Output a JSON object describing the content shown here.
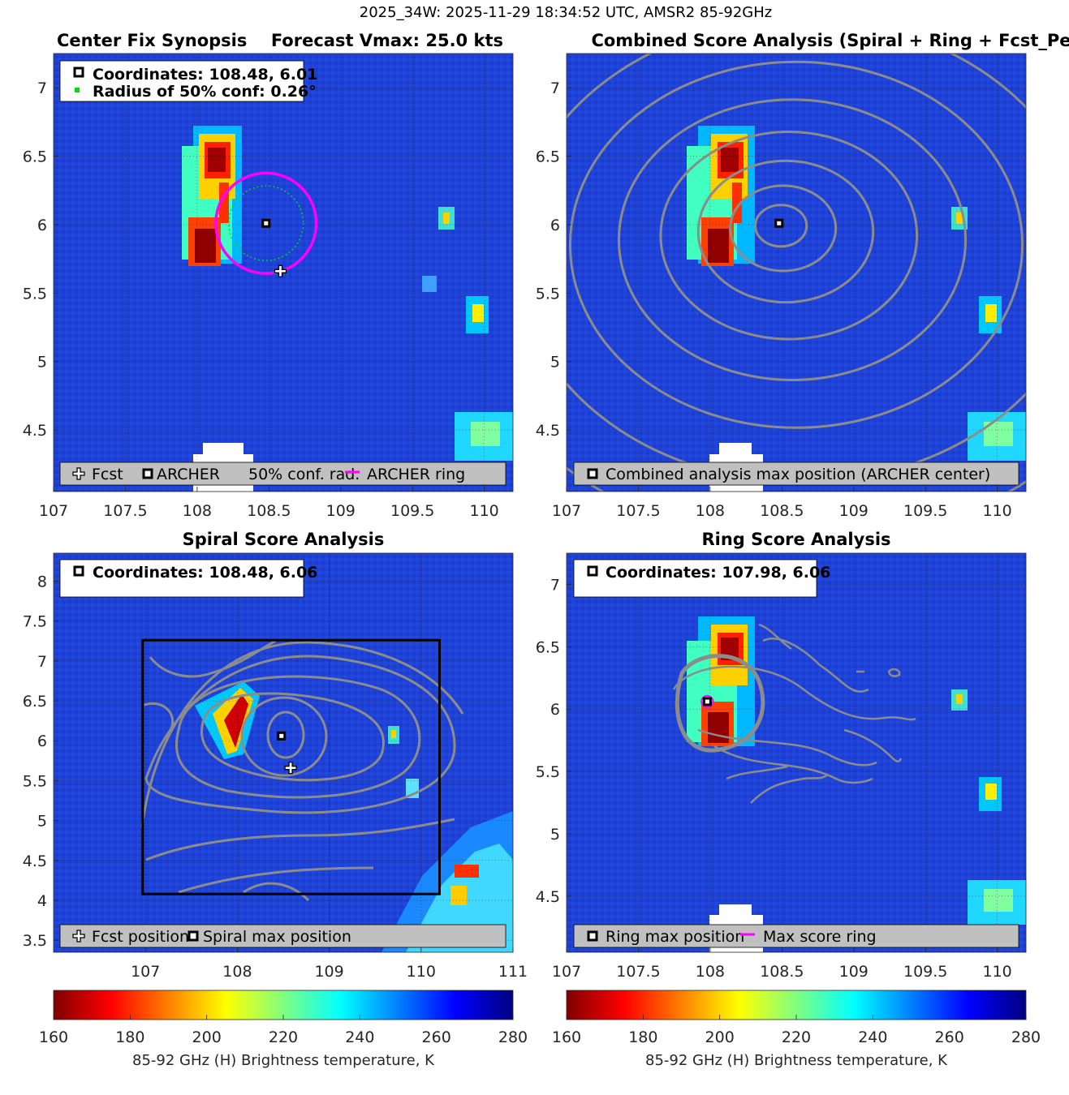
{
  "suptitle": "2025_34W: 2025-11-29 18:34:52 UTC, AMSR2 85-92GHz",
  "colors": {
    "magenta": "#ff00ff",
    "green": "#00dd00",
    "contour": "#8c8c8c",
    "legend_bg": "#c0c0c0",
    "field_bg": "#1e3fd6"
  },
  "chart_data": [
    {
      "id": "synopsis",
      "type": "heatmap",
      "title_left": "Center Fix Synopsis",
      "title_right": "Forecast Vmax: 25.0 kts",
      "xlim": [
        107,
        110.2
      ],
      "ylim": [
        4.05,
        7.25
      ],
      "xticks": [
        "107",
        "107.5",
        "108",
        "108.5",
        "109",
        "109.5",
        "110"
      ],
      "yticks": [
        "4.5",
        "5",
        "5.5",
        "6",
        "6.5",
        "7"
      ],
      "info_lines": [
        "Coordinates: 108.48, 6.01",
        "Radius of 50% conf: 0.26°"
      ],
      "center": [
        108.48,
        6.01
      ],
      "forecast": [
        108.58,
        5.66
      ],
      "conf_radius_deg": 0.26,
      "ring_radius_deg": 0.35,
      "legend": [
        "Fcst",
        "ARCHER",
        "50% conf. rad.",
        "ARCHER ring"
      ]
    },
    {
      "id": "combined",
      "type": "heatmap",
      "title": "Combined Score Analysis (Spiral + Ring + Fcst_Pe",
      "xlim": [
        107,
        110.2
      ],
      "ylim": [
        4.05,
        7.25
      ],
      "xticks": [
        "107",
        "107.5",
        "108",
        "108.5",
        "109",
        "109.5",
        "110"
      ],
      "yticks": [
        "4.5",
        "5",
        "5.5",
        "6",
        "6.5",
        "7"
      ],
      "center": [
        108.48,
        6.01
      ],
      "contour_radii_deg": [
        0.17,
        0.35,
        0.58,
        0.85,
        1.15,
        1.5,
        1.9,
        2.35
      ],
      "legend": [
        "Combined analysis max position (ARCHER center)"
      ]
    },
    {
      "id": "spiral",
      "type": "heatmap",
      "title": "Spiral Score Analysis",
      "xlim": [
        106,
        111
      ],
      "ylim": [
        3.35,
        8.35
      ],
      "xticks": [
        "107",
        "108",
        "109",
        "110",
        "111"
      ],
      "yticks": [
        "3.5",
        "4",
        "4.5",
        "5",
        "5.5",
        "6",
        "6.5",
        "7",
        "7.5",
        "8"
      ],
      "info_lines": [
        "Coordinates: 108.48, 6.06"
      ],
      "center": [
        108.48,
        6.06
      ],
      "forecast": [
        108.58,
        5.66
      ],
      "search_box": [
        106.97,
        4.08,
        110.2,
        7.26
      ],
      "legend": [
        "Fcst position",
        "Spiral max position"
      ]
    },
    {
      "id": "ring",
      "type": "heatmap",
      "title": "Ring Score Analysis",
      "xlim": [
        107,
        110.2
      ],
      "ylim": [
        4.05,
        7.25
      ],
      "xticks": [
        "107",
        "107.5",
        "108",
        "108.5",
        "109",
        "109.5",
        "110"
      ],
      "yticks": [
        "4.5",
        "5",
        "5.5",
        "6",
        "6.5",
        "7"
      ],
      "info_lines": [
        "Coordinates: 107.98, 6.06"
      ],
      "center": [
        107.98,
        6.06
      ],
      "legend": [
        "Ring max position",
        "Max score ring"
      ]
    }
  ],
  "colorbar": {
    "label": "85-92 GHz (H) Brightness temperature, K",
    "ticks": [
      "160",
      "180",
      "200",
      "220",
      "240",
      "260",
      "280"
    ],
    "range": [
      160,
      280
    ]
  }
}
